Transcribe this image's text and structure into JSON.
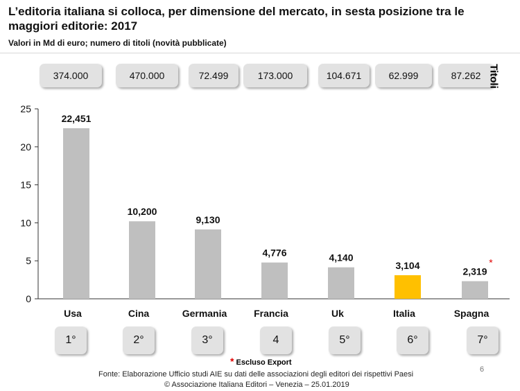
{
  "title": "L’editoria italiana si colloca, per dimensione del mercato, in sesta posizione tra le maggiori editorie: 2017",
  "subtitle": "Valori in Md di euro; numero di titoli (novità pubblicate)",
  "titoli_label": "Titoli",
  "titoli": [
    "374.000",
    "470.000",
    "72.499",
    "173.000",
    "104.671",
    "62.999",
    "87.262"
  ],
  "ranks": [
    "1°",
    "2°",
    "3°",
    "4",
    "5°",
    "6°",
    "7°"
  ],
  "footnote": {
    "marker": "*",
    "text": "Escluso Export"
  },
  "source": "Fonte: Elaborazione Ufficio studi AIE su dati delle associazioni degli editori  dei rispettivi Paesi",
  "copyright": "© Associazione Italiana Editori – Venezia – 25.01.2019",
  "page_number": "6",
  "colors": {
    "bar": "#bfbfbf",
    "highlight": "#ffc000",
    "asterisk": "#e00000",
    "box": "#e2e2e2"
  },
  "chart_data": {
    "type": "bar",
    "title": "L’editoria italiana si colloca, per dimensione del mercato, in sesta posizione tra le maggiori editorie: 2017",
    "subtitle": "Valori in Md di euro; numero di titoli (novità pubblicate)",
    "categories": [
      "Usa",
      "Cina",
      "Germania",
      "Francia",
      "Uk",
      "Italia",
      "Spagna"
    ],
    "values": [
      22.451,
      10.2,
      9.13,
      4.776,
      4.14,
      3.104,
      2.319
    ],
    "value_labels": [
      "22,451",
      "10,200",
      "9,130",
      "4,776",
      "4,140",
      "3,104",
      "2,319"
    ],
    "highlight": "Italia",
    "asterisk_on": "Spagna",
    "ylim": [
      0,
      25
    ],
    "yticks": [
      0,
      5,
      10,
      15,
      20,
      25
    ],
    "xlabel": "",
    "ylabel": "",
    "grid": false,
    "legend": "none"
  }
}
